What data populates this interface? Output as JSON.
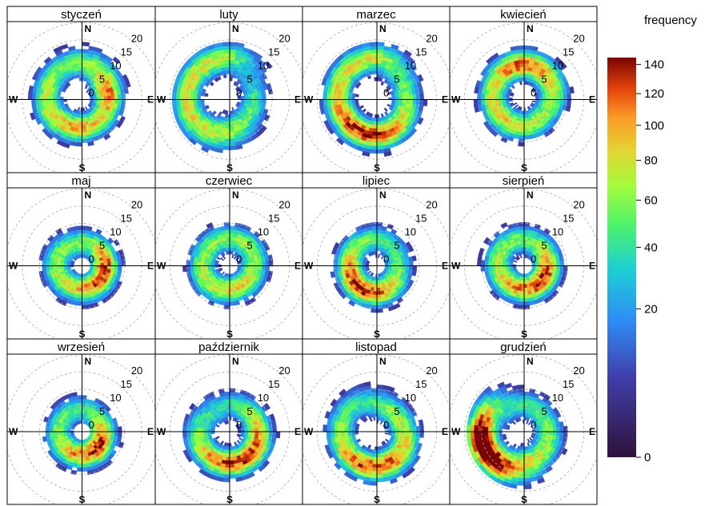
{
  "chart_data": {
    "type": "heatmap",
    "subtype": "polar-frequency",
    "legend_title": "frequency",
    "legend_placement": "right",
    "colorbar_ticks": [
      0,
      20,
      40,
      60,
      80,
      100,
      120,
      140
    ],
    "colorbar_max": 145,
    "colorscale": "turbo",
    "radial_ticks": [
      0,
      5,
      10,
      15,
      20
    ],
    "radial_max": 20,
    "directions": [
      "N",
      "E",
      "S",
      "W"
    ],
    "panels": [
      {
        "title": "styczeń",
        "dist": [
          {
            "dir": 315,
            "r": 8,
            "v": 30
          },
          {
            "dir": 270,
            "r": 8,
            "v": 45
          },
          {
            "dir": 225,
            "r": 7,
            "v": 55
          },
          {
            "dir": 180,
            "r": 6,
            "v": 65
          },
          {
            "dir": 135,
            "r": 6,
            "v": 45
          },
          {
            "dir": 90,
            "r": 5,
            "v": 40
          },
          {
            "dir": 60,
            "r": 6,
            "v": 85
          },
          {
            "dir": 20,
            "r": 8,
            "v": 30
          },
          {
            "dir": 345,
            "r": 9,
            "v": 20
          }
        ]
      },
      {
        "title": "luty",
        "dist": [
          {
            "dir": 315,
            "r": 9,
            "v": 40
          },
          {
            "dir": 270,
            "r": 10,
            "v": 45
          },
          {
            "dir": 225,
            "r": 9,
            "v": 60
          },
          {
            "dir": 180,
            "r": 7,
            "v": 50
          },
          {
            "dir": 135,
            "r": 5,
            "v": 35
          },
          {
            "dir": 90,
            "r": 5,
            "v": 25
          },
          {
            "dir": 45,
            "r": 6,
            "v": 20
          },
          {
            "dir": 0,
            "r": 9,
            "v": 20
          },
          {
            "dir": 340,
            "r": 10,
            "v": 30
          }
        ]
      },
      {
        "title": "marzec",
        "dist": [
          {
            "dir": 315,
            "r": 9,
            "v": 40
          },
          {
            "dir": 270,
            "r": 9,
            "v": 50
          },
          {
            "dir": 225,
            "r": 8,
            "v": 85
          },
          {
            "dir": 180,
            "r": 8,
            "v": 90
          },
          {
            "dir": 135,
            "r": 7,
            "v": 55
          },
          {
            "dir": 90,
            "r": 6,
            "v": 35
          },
          {
            "dir": 45,
            "r": 7,
            "v": 30
          },
          {
            "dir": 0,
            "r": 9,
            "v": 30
          },
          {
            "dir": 345,
            "r": 10,
            "v": 25
          }
        ]
      },
      {
        "title": "kwiecień",
        "dist": [
          {
            "dir": 315,
            "r": 7,
            "v": 35
          },
          {
            "dir": 270,
            "r": 7,
            "v": 50
          },
          {
            "dir": 225,
            "r": 6,
            "v": 55
          },
          {
            "dir": 180,
            "r": 6,
            "v": 45
          },
          {
            "dir": 135,
            "r": 5,
            "v": 40
          },
          {
            "dir": 90,
            "r": 6,
            "v": 35
          },
          {
            "dir": 45,
            "r": 7,
            "v": 60
          },
          {
            "dir": 0,
            "r": 8,
            "v": 55
          },
          {
            "dir": 345,
            "r": 8,
            "v": 45
          }
        ]
      },
      {
        "title": "maj",
        "dist": [
          {
            "dir": 315,
            "r": 5,
            "v": 35
          },
          {
            "dir": 270,
            "r": 6,
            "v": 40
          },
          {
            "dir": 225,
            "r": 5,
            "v": 45
          },
          {
            "dir": 180,
            "r": 5,
            "v": 50
          },
          {
            "dir": 135,
            "r": 5,
            "v": 75
          },
          {
            "dir": 90,
            "r": 5,
            "v": 95
          },
          {
            "dir": 45,
            "r": 5,
            "v": 40
          },
          {
            "dir": 0,
            "r": 5,
            "v": 30
          }
        ]
      },
      {
        "title": "czerwiec",
        "dist": [
          {
            "dir": 315,
            "r": 6,
            "v": 30
          },
          {
            "dir": 270,
            "r": 6,
            "v": 40
          },
          {
            "dir": 225,
            "r": 6,
            "v": 45
          },
          {
            "dir": 180,
            "r": 5,
            "v": 50
          },
          {
            "dir": 135,
            "r": 5,
            "v": 55
          },
          {
            "dir": 90,
            "r": 5,
            "v": 35
          },
          {
            "dir": 45,
            "r": 6,
            "v": 40
          },
          {
            "dir": 0,
            "r": 6,
            "v": 35
          }
        ]
      },
      {
        "title": "lipiec",
        "dist": [
          {
            "dir": 315,
            "r": 6,
            "v": 35
          },
          {
            "dir": 270,
            "r": 6,
            "v": 55
          },
          {
            "dir": 225,
            "r": 6,
            "v": 90
          },
          {
            "dir": 180,
            "r": 6,
            "v": 75
          },
          {
            "dir": 135,
            "r": 5,
            "v": 50
          },
          {
            "dir": 90,
            "r": 4,
            "v": 30
          },
          {
            "dir": 45,
            "r": 5,
            "v": 25
          },
          {
            "dir": 0,
            "r": 6,
            "v": 25
          }
        ]
      },
      {
        "title": "sierpień",
        "dist": [
          {
            "dir": 315,
            "r": 6,
            "v": 35
          },
          {
            "dir": 270,
            "r": 6,
            "v": 40
          },
          {
            "dir": 225,
            "r": 5,
            "v": 55
          },
          {
            "dir": 180,
            "r": 5,
            "v": 60
          },
          {
            "dir": 135,
            "r": 5,
            "v": 85
          },
          {
            "dir": 90,
            "r": 5,
            "v": 75
          },
          {
            "dir": 45,
            "r": 5,
            "v": 40
          },
          {
            "dir": 0,
            "r": 6,
            "v": 30
          }
        ]
      },
      {
        "title": "wrzesień",
        "dist": [
          {
            "dir": 315,
            "r": 5,
            "v": 25
          },
          {
            "dir": 270,
            "r": 5,
            "v": 35
          },
          {
            "dir": 225,
            "r": 5,
            "v": 50
          },
          {
            "dir": 180,
            "r": 5,
            "v": 65
          },
          {
            "dir": 135,
            "r": 5,
            "v": 95
          },
          {
            "dir": 90,
            "r": 4,
            "v": 70
          },
          {
            "dir": 45,
            "r": 4,
            "v": 30
          },
          {
            "dir": 0,
            "r": 5,
            "v": 25
          }
        ]
      },
      {
        "title": "październik",
        "dist": [
          {
            "dir": 315,
            "r": 5,
            "v": 25
          },
          {
            "dir": 270,
            "r": 7,
            "v": 30
          },
          {
            "dir": 225,
            "r": 7,
            "v": 55
          },
          {
            "dir": 180,
            "r": 7,
            "v": 75
          },
          {
            "dir": 135,
            "r": 7,
            "v": 80
          },
          {
            "dir": 90,
            "r": 6,
            "v": 65
          },
          {
            "dir": 45,
            "r": 6,
            "v": 35
          },
          {
            "dir": 0,
            "r": 6,
            "v": 20
          }
        ]
      },
      {
        "title": "listopad",
        "dist": [
          {
            "dir": 315,
            "r": 8,
            "v": 25
          },
          {
            "dir": 270,
            "r": 8,
            "v": 35
          },
          {
            "dir": 225,
            "r": 8,
            "v": 60
          },
          {
            "dir": 180,
            "r": 8,
            "v": 85
          },
          {
            "dir": 135,
            "r": 7,
            "v": 70
          },
          {
            "dir": 90,
            "r": 6,
            "v": 40
          },
          {
            "dir": 45,
            "r": 5,
            "v": 45
          },
          {
            "dir": 0,
            "r": 6,
            "v": 30
          }
        ]
      },
      {
        "title": "grudzień",
        "dist": [
          {
            "dir": 315,
            "r": 6,
            "v": 25
          },
          {
            "dir": 270,
            "r": 9,
            "v": 60
          },
          {
            "dir": 250,
            "r": 10,
            "v": 110
          },
          {
            "dir": 225,
            "r": 9,
            "v": 95
          },
          {
            "dir": 180,
            "r": 7,
            "v": 60
          },
          {
            "dir": 135,
            "r": 6,
            "v": 45
          },
          {
            "dir": 90,
            "r": 5,
            "v": 35
          },
          {
            "dir": 45,
            "r": 5,
            "v": 30
          },
          {
            "dir": 0,
            "r": 6,
            "v": 25
          }
        ]
      }
    ]
  }
}
